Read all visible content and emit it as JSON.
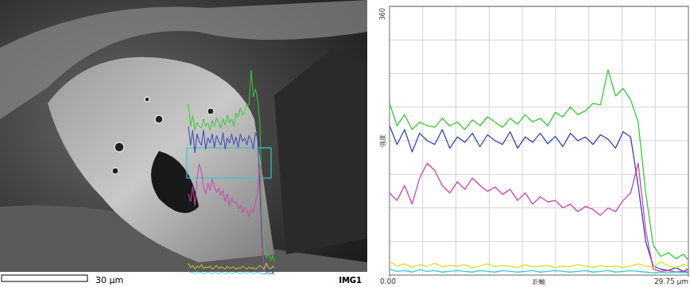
{
  "image": {
    "scale_bar": "30 µm",
    "label": "IMG1"
  },
  "chart_data": {
    "type": "line",
    "xlabel": "距離",
    "ylabel": "強度",
    "xlim": [
      0,
      29.75
    ],
    "ylim": [
      0,
      360
    ],
    "xticks": [
      {
        "value": 0,
        "label": "0.00"
      },
      {
        "value": 29.75,
        "label": "29.75 µm"
      }
    ],
    "yticks": [
      360
    ],
    "grid": true,
    "x": [
      0,
      0.75,
      1.5,
      2.25,
      3,
      3.75,
      4.5,
      5.25,
      6,
      6.75,
      7.5,
      8.25,
      9,
      9.75,
      10.5,
      11.25,
      12,
      12.75,
      13.5,
      14.25,
      15,
      15.75,
      16.5,
      17.25,
      18,
      18.75,
      19.5,
      20.25,
      21,
      21.75,
      22.5,
      23.25,
      24,
      24.75,
      25.5,
      26.25,
      27,
      27.75,
      28.5,
      29.25,
      29.75
    ],
    "series": [
      {
        "color": "#33cc33",
        "values": [
          230,
          200,
          215,
          195,
          205,
          200,
          198,
          210,
          200,
          205,
          195,
          208,
          200,
          212,
          205,
          198,
          210,
          202,
          215,
          205,
          210,
          200,
          218,
          212,
          225,
          215,
          220,
          230,
          228,
          275,
          240,
          250,
          235,
          205,
          110,
          40,
          25,
          30,
          22,
          28,
          20
        ]
      },
      {
        "color": "#3344bb",
        "values": [
          200,
          175,
          195,
          165,
          190,
          180,
          175,
          195,
          170,
          185,
          178,
          190,
          172,
          188,
          180,
          175,
          192,
          170,
          185,
          178,
          190,
          176,
          186,
          172,
          190,
          180,
          185,
          175,
          188,
          182,
          170,
          192,
          185,
          120,
          45,
          12,
          8,
          6,
          10,
          5,
          8
        ]
      },
      {
        "color": "#cc44aa",
        "values": [
          110,
          100,
          120,
          95,
          130,
          150,
          140,
          120,
          110,
          125,
          115,
          130,
          120,
          112,
          118,
          108,
          115,
          100,
          110,
          95,
          105,
          98,
          100,
          90,
          95,
          85,
          92,
          88,
          80,
          90,
          85,
          100,
          110,
          150,
          60,
          8,
          5,
          6,
          4,
          5,
          4
        ]
      },
      {
        "color": "#dddd22",
        "values": [
          18,
          12,
          15,
          10,
          14,
          12,
          16,
          11,
          13,
          12,
          14,
          10,
          12,
          15,
          11,
          13,
          12,
          10,
          14,
          11,
          12,
          13,
          10,
          12,
          11,
          14,
          12,
          10,
          13,
          11,
          12,
          10,
          12,
          15,
          12,
          10,
          18,
          12,
          10,
          14,
          12
        ]
      },
      {
        "color": "#33cccc",
        "values": [
          8,
          5,
          6,
          4,
          7,
          5,
          6,
          4,
          5,
          6,
          5,
          4,
          6,
          5,
          4,
          6,
          5,
          4,
          5,
          6,
          4,
          5,
          6,
          5,
          4,
          5,
          6,
          4,
          5,
          6,
          4,
          5,
          6,
          5,
          4,
          3,
          4,
          3,
          4,
          3,
          3
        ]
      }
    ]
  }
}
